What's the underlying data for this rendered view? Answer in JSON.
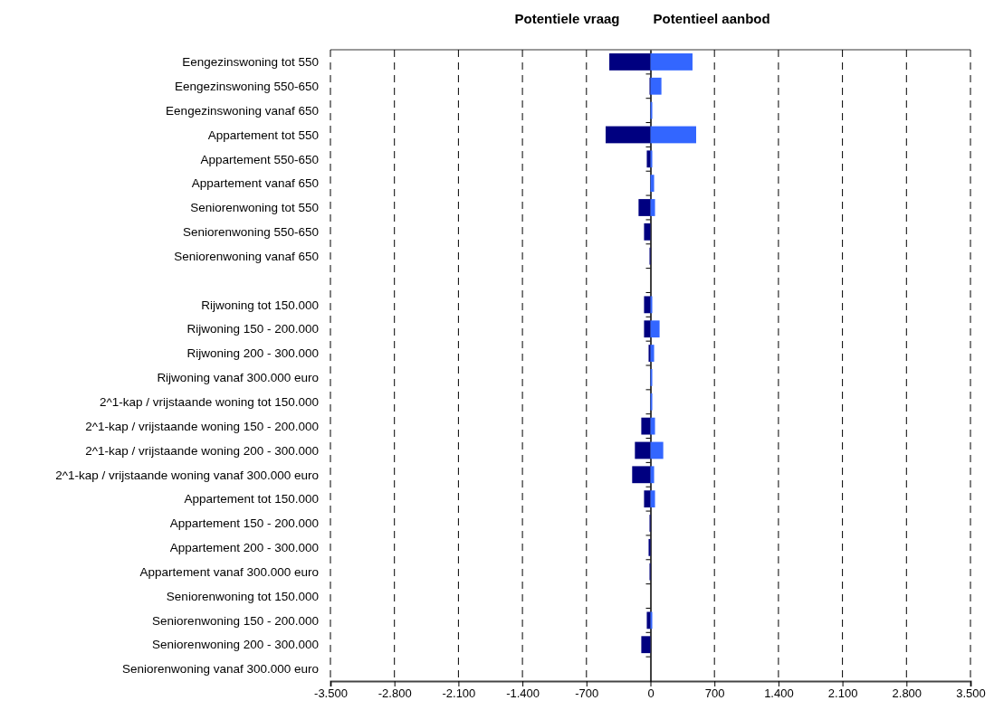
{
  "chart_data": {
    "type": "bar",
    "orientation": "horizontal",
    "stacked": true,
    "categories": [
      "Eengezinswoning tot 550",
      "Eengezinswoning 550-650",
      "Eengezinswoning vanaf 650",
      "Appartement tot 550",
      "Appartement 550-650",
      "Appartement vanaf 650",
      "Seniorenwoning tot 550",
      "Seniorenwoning 550-650",
      "Seniorenwoning vanaf 650",
      null,
      "Rijwoning tot 150.000",
      "Rijwoning 150 - 200.000",
      "Rijwoning 200 - 300.000",
      "Rijwoning vanaf 300.000 euro",
      "2^1-kap / vrijstaande woning tot 150.000",
      "2^1-kap / vrijstaande woning 150 - 200.000",
      "2^1-kap / vrijstaande woning 200 - 300.000",
      "2^1-kap / vrijstaande woning vanaf 300.000 euro",
      "Appartement tot 150.000",
      "Appartement 150 - 200.000",
      "Appartement 200 - 300.000",
      "Appartement vanaf 300.000 euro",
      "Seniorenwoning tot 150.000",
      "Seniorenwoning 150 - 200.000",
      "Seniorenwoning 200 - 300.000",
      "Seniorenwoning vanaf 300.000 euro"
    ],
    "series": [
      {
        "name": "Potentiele vraag",
        "color": "#000080",
        "values": [
          -450,
          -10,
          0,
          -490,
          -40,
          0,
          -130,
          -70,
          -10,
          null,
          -70,
          -70,
          -20,
          0,
          0,
          -100,
          -170,
          -200,
          -70,
          -10,
          -20,
          -10,
          0,
          -40,
          -100,
          0
        ]
      },
      {
        "name": "Potentieel aanbod",
        "color": "#3366ff",
        "values": [
          460,
          120,
          20,
          500,
          20,
          40,
          50,
          0,
          0,
          null,
          20,
          100,
          40,
          20,
          20,
          50,
          140,
          40,
          50,
          0,
          0,
          0,
          0,
          20,
          0,
          0
        ]
      }
    ],
    "xlim": [
      -3500,
      3500
    ],
    "xticks": [
      {
        "value": -3500,
        "label": "-3.500"
      },
      {
        "value": -2800,
        "label": "-2.800"
      },
      {
        "value": -2100,
        "label": "-2.100"
      },
      {
        "value": -1400,
        "label": "-1.400"
      },
      {
        "value": -700,
        "label": "-700"
      },
      0,
      700,
      {
        "value": 1400,
        "label": "1.400"
      },
      {
        "value": 2100,
        "label": "2.100"
      },
      {
        "value": 2800,
        "label": "2.800"
      },
      {
        "value": 3500,
        "label": "3.500"
      }
    ],
    "grid": "x"
  }
}
